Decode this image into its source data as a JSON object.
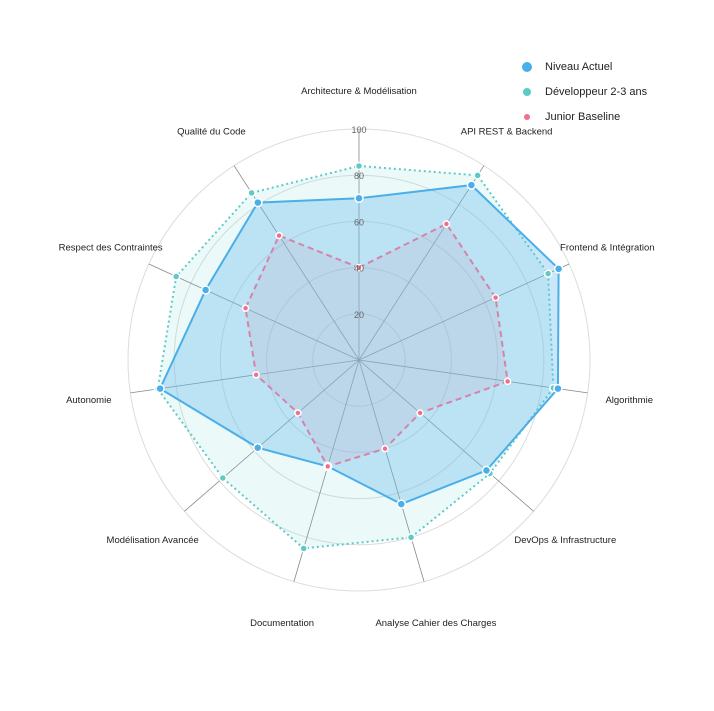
{
  "chart_data": {
    "type": "radar",
    "title": "",
    "categories": [
      "Architecture & Modélisation",
      "API REST & Backend",
      "Frontend & Intégration",
      "Algorithmie",
      "DevOps & Infrastructure",
      "Analyse Cahier des Charges",
      "Documentation",
      "Modélisation Avancée",
      "Autonomie",
      "Respect des Contraintes",
      "Qualité du Code"
    ],
    "series": [
      {
        "name": "Niveau Actuel",
        "color": "#4aaee8",
        "values": [
          70,
          90,
          95,
          87,
          73,
          65,
          48,
          58,
          87,
          73,
          81
        ]
      },
      {
        "name": "Développeur 2-3 ans",
        "color": "#5ecac8",
        "values": [
          84,
          95,
          90,
          85,
          75,
          80,
          85,
          78,
          88,
          87,
          86
        ]
      },
      {
        "name": "Junior Baseline",
        "color": "#f0708c",
        "values": [
          40,
          70,
          65,
          65,
          35,
          40,
          48,
          35,
          45,
          54,
          64
        ]
      }
    ],
    "rlim": [
      0,
      100
    ],
    "ticks": [
      20,
      40,
      60,
      80,
      100
    ],
    "legend_position": "top-right",
    "grid": true
  },
  "legend": {
    "items": [
      {
        "label": "Niveau Actuel",
        "color": "#4aaee8"
      },
      {
        "label": "Développeur 2-3 ans",
        "color": "#5ecac8"
      },
      {
        "label": "Junior Baseline",
        "color": "#f0708c"
      }
    ]
  }
}
